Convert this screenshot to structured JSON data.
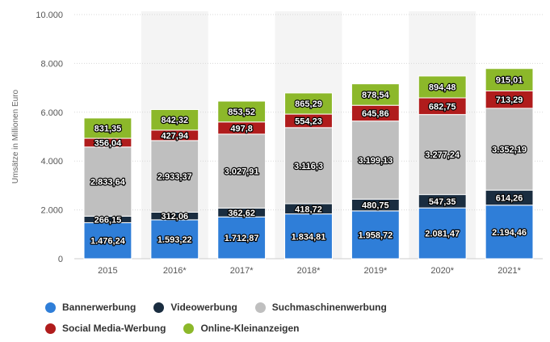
{
  "chart_data": {
    "type": "bar",
    "stacked": true,
    "categories": [
      "2015",
      "2016*",
      "2017*",
      "2018*",
      "2019*",
      "2020*",
      "2021*"
    ],
    "series": [
      {
        "name": "Bannerwerbung",
        "color": "#2f7ed8",
        "values": [
          1476.24,
          1593.22,
          1712.87,
          1834.81,
          1958.72,
          2081.47,
          2194.46
        ],
        "labels": [
          "1.476,24",
          "1.593,22",
          "1.712,87",
          "1.834,81",
          "1.958,72",
          "2.081,47",
          "2.194,46"
        ]
      },
      {
        "name": "Videowerbung",
        "color": "#1a2d40",
        "values": [
          266.15,
          312.06,
          362.62,
          418.72,
          480.75,
          547.35,
          614.26
        ],
        "labels": [
          "266,15",
          "312,06",
          "362,62",
          "418,72",
          "480,75",
          "547,35",
          "614,26"
        ]
      },
      {
        "name": "Suchmaschinenwerbung",
        "color": "#bfbfbf",
        "values": [
          2833.64,
          2933.37,
          3027.91,
          3116.3,
          3199.13,
          3277.24,
          3352.19
        ],
        "labels": [
          "2.833,64",
          "2.933,37",
          "3.027,91",
          "3.116,3",
          "3.199,13",
          "3.277,24",
          "3.352,19"
        ]
      },
      {
        "name": "Social Media-Werbung",
        "color": "#b01c1c",
        "values": [
          356.04,
          427.94,
          497.8,
          554.23,
          645.86,
          682.75,
          713.29
        ],
        "labels": [
          "356,04",
          "427,94",
          "497,8",
          "554,23",
          "645,86",
          "682,75",
          "713,29"
        ]
      },
      {
        "name": "Online-Kleinanzeigen",
        "color": "#8cb82a",
        "values": [
          831.35,
          842.32,
          853.52,
          865.29,
          878.54,
          894.48,
          915.01
        ],
        "labels": [
          "831,35",
          "842,32",
          "853,52",
          "865,29",
          "878,54",
          "894,48",
          "915,01"
        ]
      }
    ],
    "ylabel": "Umsätze in Millionen Euro",
    "ylim": [
      0,
      10000
    ],
    "yticks": [
      0,
      2000,
      4000,
      6000,
      8000,
      10000
    ],
    "ytick_labels": [
      "0",
      "2.000",
      "4.000",
      "6.000",
      "8.000",
      "10.000"
    ],
    "grid": true,
    "legend_position": "bottom"
  }
}
